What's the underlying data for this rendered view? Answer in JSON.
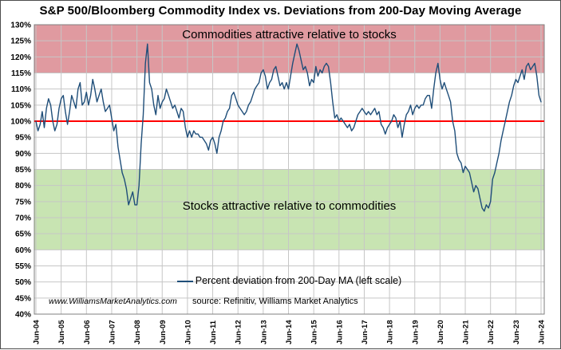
{
  "header": {
    "title": "S&P 500/Bloomberg Commodity Index vs. Deviations from 200-Day Moving Average"
  },
  "footer": {
    "watermark": "www.WilliamsMarketAnalytics.com",
    "source": "source: Refinitiv, Williams Market Analytics"
  },
  "chart_data": {
    "type": "line",
    "title": "S&P 500/Bloomberg Commodity Index vs. Deviations from 200-Day Moving Average",
    "xlabel": "",
    "ylabel": "",
    "ylim": [
      40,
      130
    ],
    "y_step": 5,
    "y_tick_format": "percent",
    "grid": true,
    "grid_color": "#c6c6c6",
    "x_tick_labels": [
      "Jun-04",
      "Jun-05",
      "Jun-06",
      "Jun-07",
      "Jun-08",
      "Jun-09",
      "Jun-10",
      "Jun-11",
      "Jun-12",
      "Jun-13",
      "Jun-14",
      "Jun-15",
      "Jun-16",
      "Jun-17",
      "Jun-18",
      "Jun-19",
      "Jun-20",
      "Jun-21",
      "Jun-22",
      "Jun-23",
      "Jun-24"
    ],
    "ref_line": {
      "value": 100,
      "color": "#ff0000"
    },
    "bands": [
      {
        "from": 115,
        "to": 130,
        "color": "#e09aa0",
        "label": "Commodities attractive relative to stocks"
      },
      {
        "from": 60,
        "to": 85,
        "color": "#c8e4b2",
        "label": "Stocks attractive relative to commodities"
      }
    ],
    "legend": {
      "position": "bottom-center-inside",
      "label": "Percent deviation from 200-Day MA (left scale)"
    },
    "series": [
      {
        "name": "Percent deviation from 200-Day MA (left scale)",
        "color": "#1f4e79",
        "x_start": "Jun-2004",
        "x_end": "Jun-2024",
        "frequency": "monthly",
        "values": [
          100,
          97,
          99,
          103,
          98,
          104,
          107,
          105,
          100,
          97,
          99,
          104,
          107,
          108,
          103,
          99,
          103,
          108,
          106,
          104,
          110,
          112,
          105,
          106,
          109,
          105,
          108,
          113,
          110,
          106,
          108,
          110,
          106,
          103,
          104,
          105,
          101,
          97,
          99,
          92,
          88,
          84,
          82,
          79,
          74,
          76,
          78,
          74,
          74,
          80,
          93,
          102,
          118,
          124,
          112,
          110,
          105,
          102,
          108,
          104,
          106,
          107,
          110,
          108,
          106,
          104,
          105,
          103,
          101,
          104,
          103,
          98,
          95,
          97,
          95,
          97,
          96,
          96,
          95,
          95,
          94,
          93,
          91,
          94,
          95,
          93,
          90,
          95,
          97,
          100,
          101,
          103,
          104,
          108,
          109,
          107,
          105,
          104,
          103,
          102,
          103,
          105,
          106,
          108,
          110,
          111,
          112,
          115,
          116,
          114,
          110,
          112,
          113,
          116,
          117,
          114,
          111,
          112,
          110,
          112,
          110,
          114,
          118,
          121,
          124,
          122,
          119,
          116,
          117,
          115,
          111,
          113,
          112,
          117,
          114,
          116,
          115,
          117,
          118,
          117,
          112,
          106,
          101,
          102,
          100,
          101,
          100,
          99,
          98,
          99,
          97,
          98,
          100,
          102,
          103,
          104,
          103,
          102,
          103,
          102,
          103,
          104,
          102,
          103,
          99,
          98,
          96,
          98,
          99,
          100,
          102,
          101,
          98,
          100,
          95,
          99,
          102,
          103,
          105,
          102,
          104,
          105,
          104,
          105,
          105,
          107,
          108,
          108,
          104,
          110,
          115,
          118,
          113,
          110,
          112,
          110,
          108,
          106,
          100,
          97,
          90,
          88,
          87,
          84,
          86,
          85,
          84,
          81,
          78,
          80,
          79,
          76,
          73,
          72,
          74,
          73,
          75,
          82,
          84,
          87,
          90,
          94,
          97,
          100,
          103,
          106,
          108,
          111,
          113,
          112,
          114,
          116,
          113,
          117,
          118,
          116,
          117,
          118,
          114,
          108,
          106
        ]
      }
    ]
  }
}
